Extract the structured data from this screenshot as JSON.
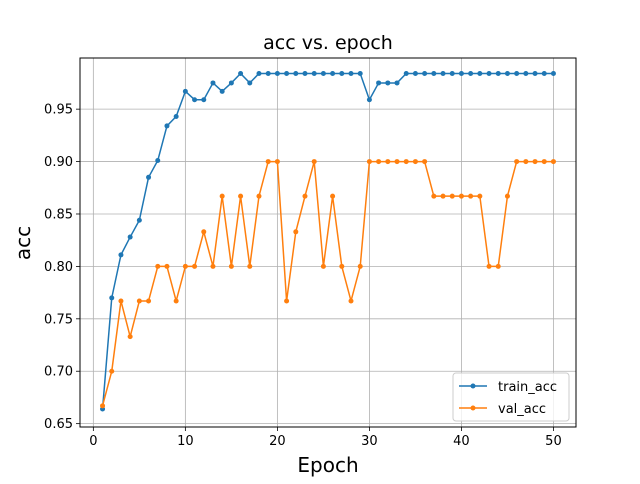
{
  "chart_data": {
    "type": "line",
    "title": "acc vs. epoch",
    "xlabel": "Epoch",
    "ylabel": "acc",
    "xlim": [
      -1.45,
      52.45
    ],
    "ylim": [
      0.6468,
      0.9988
    ],
    "x_ticks": [
      0,
      10,
      20,
      30,
      40,
      50
    ],
    "y_ticks": [
      0.65,
      0.7,
      0.75,
      0.8,
      0.85,
      0.9,
      0.95
    ],
    "x_tick_labels": [
      "0",
      "10",
      "20",
      "30",
      "40",
      "50"
    ],
    "y_tick_labels": [
      "0.65",
      "0.70",
      "0.75",
      "0.80",
      "0.85",
      "0.90",
      "0.95"
    ],
    "grid": true,
    "legend_position": "bottom-right",
    "x": [
      1,
      2,
      3,
      4,
      5,
      6,
      7,
      8,
      9,
      10,
      11,
      12,
      13,
      14,
      15,
      16,
      17,
      18,
      19,
      20,
      21,
      22,
      23,
      24,
      25,
      26,
      27,
      28,
      29,
      30,
      31,
      32,
      33,
      34,
      35,
      36,
      37,
      38,
      39,
      40,
      41,
      42,
      43,
      44,
      45,
      46,
      47,
      48,
      49,
      50
    ],
    "series": [
      {
        "name": "train_acc",
        "color": "#1f77b4",
        "values": [
          0.664,
          0.77,
          0.811,
          0.828,
          0.844,
          0.885,
          0.901,
          0.934,
          0.943,
          0.967,
          0.959,
          0.959,
          0.975,
          0.967,
          0.975,
          0.984,
          0.975,
          0.984,
          0.984,
          0.984,
          0.984,
          0.984,
          0.984,
          0.984,
          0.984,
          0.984,
          0.984,
          0.984,
          0.984,
          0.959,
          0.975,
          0.975,
          0.975,
          0.984,
          0.984,
          0.984,
          0.984,
          0.984,
          0.984,
          0.984,
          0.984,
          0.984,
          0.984,
          0.984,
          0.984,
          0.984,
          0.984,
          0.984,
          0.984,
          0.984
        ]
      },
      {
        "name": "val_acc",
        "color": "#ff7f0e",
        "values": [
          0.667,
          0.7,
          0.767,
          0.733,
          0.767,
          0.767,
          0.8,
          0.8,
          0.767,
          0.8,
          0.8,
          0.833,
          0.8,
          0.867,
          0.8,
          0.867,
          0.8,
          0.867,
          0.9,
          0.9,
          0.767,
          0.833,
          0.867,
          0.9,
          0.8,
          0.867,
          0.8,
          0.767,
          0.8,
          0.9,
          0.9,
          0.9,
          0.9,
          0.9,
          0.9,
          0.9,
          0.867,
          0.867,
          0.867,
          0.867,
          0.867,
          0.867,
          0.8,
          0.8,
          0.867,
          0.9,
          0.9,
          0.9,
          0.9,
          0.9
        ]
      }
    ]
  }
}
